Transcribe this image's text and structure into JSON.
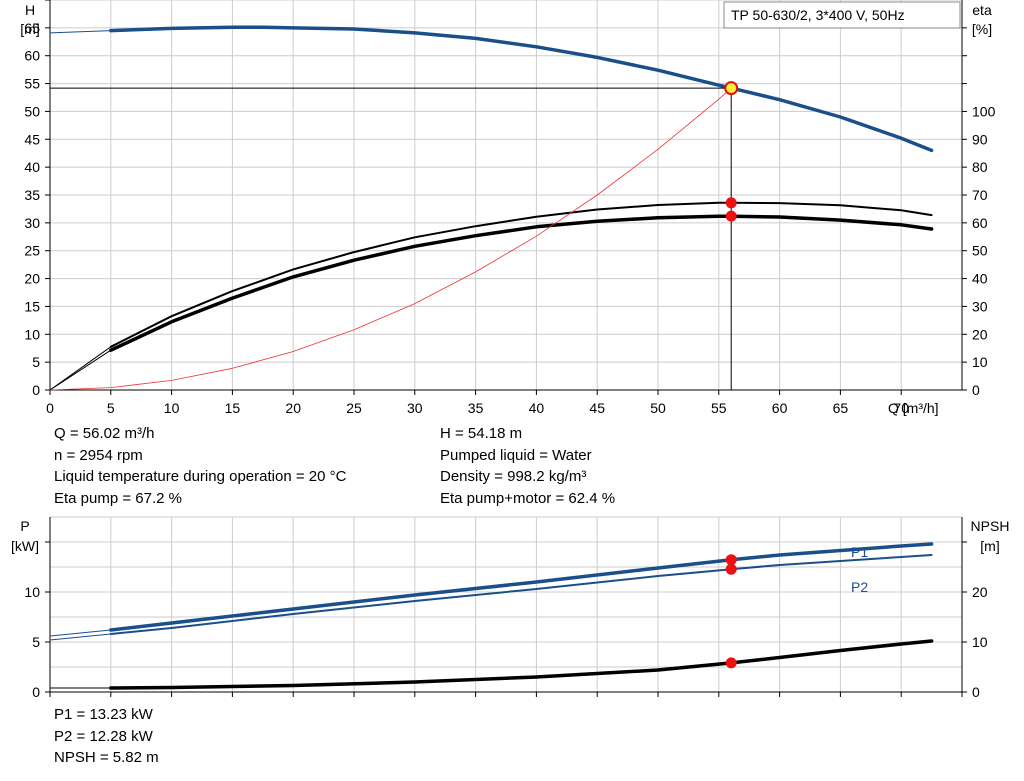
{
  "chart_data": [
    {
      "type": "line",
      "title": "TP 50-630/2, 3*400 V, 50Hz",
      "x_axis": {
        "label": "Q [m³/h]",
        "range": [
          0,
          75
        ],
        "ticks": [
          0,
          5,
          10,
          15,
          20,
          25,
          30,
          35,
          40,
          45,
          50,
          55,
          60,
          65,
          70
        ]
      },
      "y_left": {
        "label_top": "H",
        "label_unit": "[m]",
        "range": [
          0,
          70
        ],
        "ticks": [
          0,
          5,
          10,
          15,
          20,
          25,
          30,
          35,
          40,
          45,
          50,
          55,
          60,
          65
        ]
      },
      "y_right": {
        "label_top": "eta",
        "label_unit": "[%]",
        "range": [
          0,
          140
        ],
        "ticks": [
          0,
          10,
          20,
          30,
          40,
          50,
          60,
          70,
          80,
          90,
          100
        ]
      },
      "grid": true,
      "series": [
        {
          "key": "head",
          "axis": "left",
          "color": "#1a4f8a",
          "x": [
            0,
            5,
            10,
            15,
            17.5,
            20,
            25,
            30,
            35,
            40,
            45,
            50,
            55,
            56.02,
            60,
            65,
            70,
            72.5
          ],
          "y": [
            64.1,
            64.5,
            64.9,
            65.1,
            65.1,
            65.0,
            64.8,
            64.1,
            63.1,
            61.6,
            59.7,
            57.4,
            54.7,
            54.18,
            52.1,
            49.0,
            45.2,
            43.0
          ]
        },
        {
          "key": "eta-pump",
          "axis": "right",
          "color": "#000000",
          "x": [
            0,
            5,
            10,
            15,
            20,
            25,
            30,
            35,
            40,
            45,
            50,
            55,
            56.02,
            60,
            65,
            70,
            72.5
          ],
          "y": [
            0,
            15.5,
            26.5,
            35.5,
            43.3,
            49.5,
            54.8,
            58.8,
            62.2,
            64.8,
            66.4,
            67.2,
            67.2,
            67.1,
            66.3,
            64.5,
            62.8
          ]
        },
        {
          "key": "eta-pump-motor",
          "axis": "right",
          "color": "#000000",
          "x": [
            0,
            5,
            10,
            15,
            20,
            25,
            30,
            35,
            40,
            45,
            50,
            55,
            56.02,
            60,
            65,
            70,
            72.5
          ],
          "y": [
            0,
            14.3,
            24.5,
            33.0,
            40.6,
            46.6,
            51.6,
            55.4,
            58.6,
            60.6,
            61.8,
            62.4,
            62.4,
            62.1,
            61.0,
            59.3,
            57.8
          ]
        },
        {
          "key": "system-curve",
          "axis": "left",
          "color": "#ee3333",
          "x": [
            0,
            5,
            10,
            15,
            20,
            25,
            30,
            35,
            40,
            45,
            50,
            55,
            56.02
          ],
          "y": [
            0,
            0.43,
            1.73,
            3.89,
            6.91,
            10.8,
            15.5,
            21.2,
            27.6,
            35.0,
            43.2,
            52.2,
            54.18
          ]
        }
      ],
      "duty_point": {
        "q": 56.02,
        "h": 54.18,
        "eta_pump": 67.2,
        "eta_pump_motor": 62.4
      }
    },
    {
      "type": "line",
      "x_axis": {
        "range": [
          0,
          75
        ]
      },
      "y_left": {
        "label_top": "P",
        "label_unit": "[kW]",
        "range": [
          0,
          17.5
        ],
        "ticks": [
          0,
          5,
          10
        ]
      },
      "y_right": {
        "label_top": "NPSH",
        "label_unit": "[m]",
        "range": [
          0,
          35
        ],
        "ticks": [
          0,
          10,
          20
        ]
      },
      "grid": true,
      "series": [
        {
          "key": "P1",
          "name": "P1",
          "axis": "left",
          "color": "#1a4f8a",
          "x": [
            0,
            5,
            10,
            20,
            30,
            40,
            50,
            56.02,
            60,
            70,
            72.5
          ],
          "y": [
            5.6,
            6.2,
            6.9,
            8.3,
            9.7,
            11.0,
            12.4,
            13.23,
            13.7,
            14.6,
            14.8
          ]
        },
        {
          "key": "P2",
          "name": "P2",
          "axis": "left",
          "color": "#1a4f8a",
          "x": [
            0,
            5,
            10,
            20,
            30,
            40,
            50,
            56.02,
            60,
            70,
            72.5
          ],
          "y": [
            5.2,
            5.8,
            6.4,
            7.8,
            9.1,
            10.3,
            11.6,
            12.28,
            12.7,
            13.5,
            13.7
          ]
        },
        {
          "key": "NPSH",
          "axis": "right",
          "color": "#000000",
          "x": [
            5,
            10,
            20,
            30,
            40,
            50,
            56.02,
            60,
            65,
            70,
            72.5
          ],
          "y": [
            0.8,
            0.9,
            1.3,
            2.0,
            3.0,
            4.4,
            5.82,
            6.9,
            8.3,
            9.6,
            10.2
          ]
        }
      ],
      "duty_point": {
        "q": 56.02,
        "p1": 13.23,
        "p2": 12.28,
        "npsh": 5.82
      }
    }
  ],
  "info_top_left": [
    "Q = 56.02 m³/h",
    "n = 2954 rpm",
    "Liquid temperature during operation = 20 °C",
    "Eta pump = 67.2 %"
  ],
  "info_top_right": [
    "H = 54.18 m",
    "Pumped liquid = Water",
    "Density = 998.2 kg/m³",
    "Eta pump+motor = 62.4 %"
  ],
  "info_bottom": [
    "P1 = 13.23 kW",
    "P2 = 12.28 kW",
    "NPSH = 5.82 m"
  ],
  "colors": {
    "blue_curve": "#1a4f8a",
    "duty_marker": "#ee1111",
    "duty_marker_head": "#ffee33",
    "grid": "#cccccc"
  }
}
